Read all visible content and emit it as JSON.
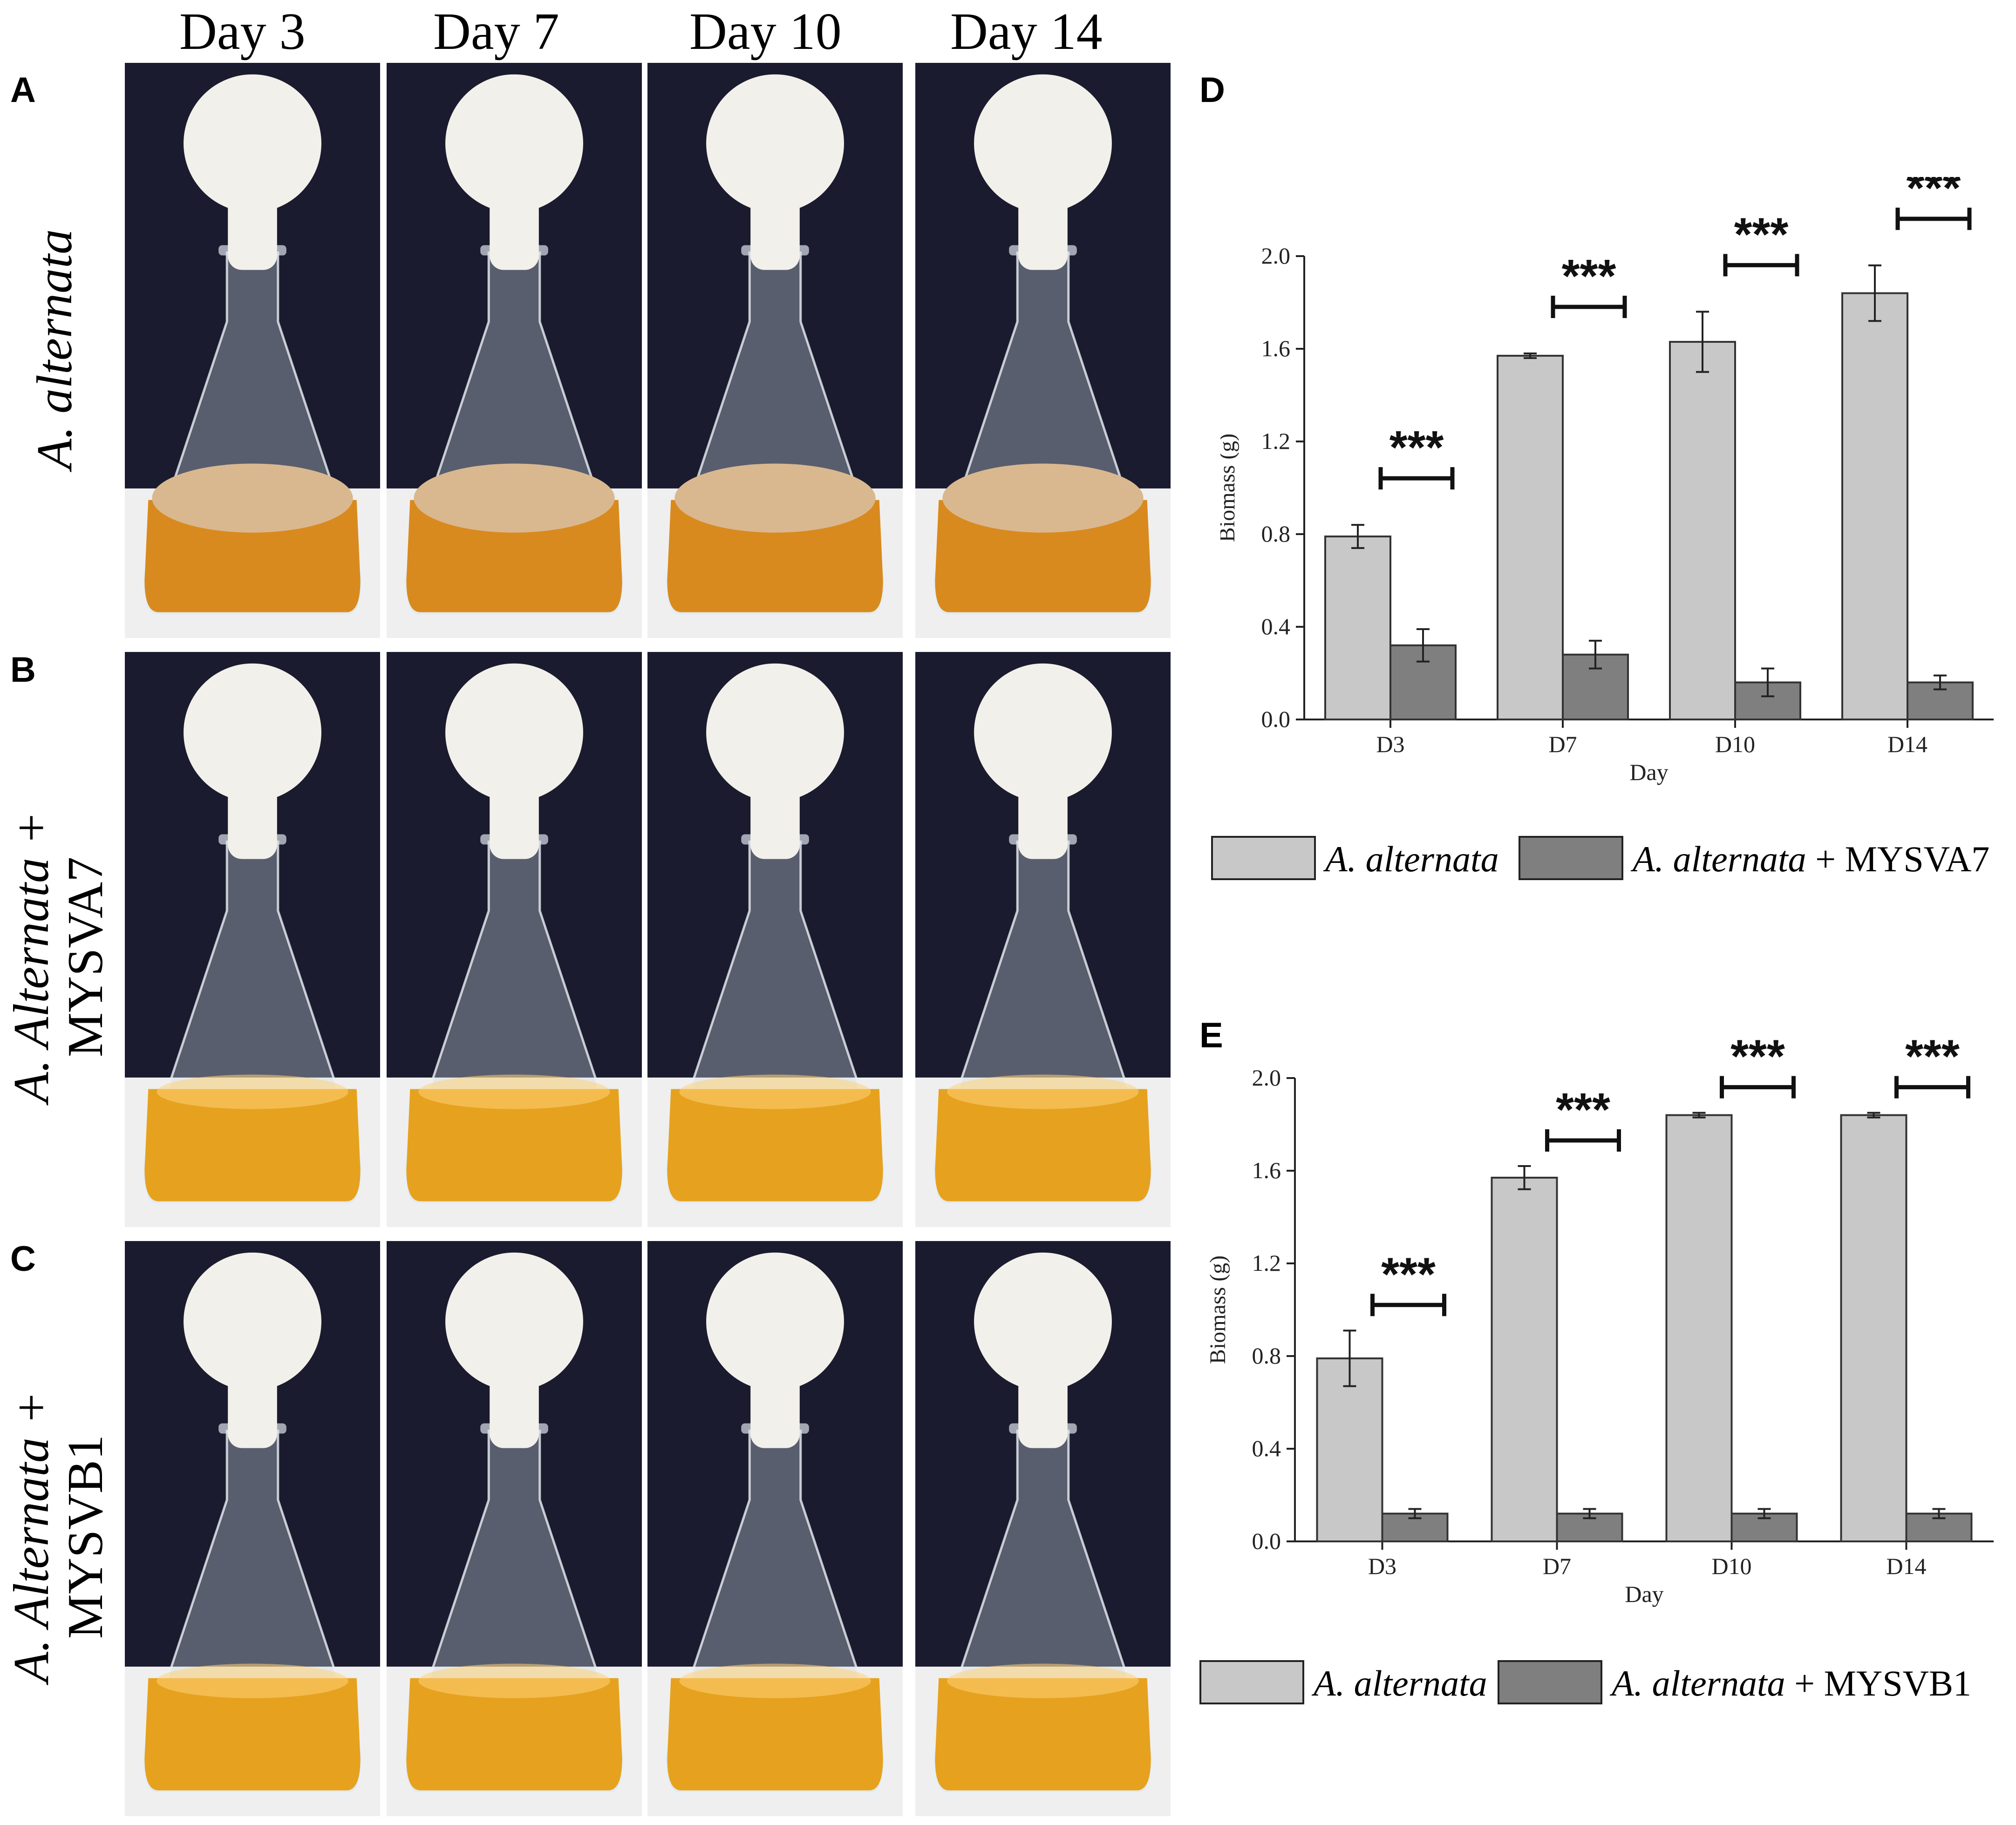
{
  "columns": [
    "Day 3",
    "Day 7",
    "Day 10",
    "Day 14"
  ],
  "panels": {
    "A": {
      "letter": "A",
      "label_line1": "A. alternata",
      "label_line2": ""
    },
    "B": {
      "letter": "B",
      "label_line1": "A. Alternata +",
      "label_line2": "MYSVA7"
    },
    "C": {
      "letter": "C",
      "label_line1": "A. Alternata +",
      "label_line2": "MYSVB1"
    }
  },
  "photo_notes": {
    "A": [
      "D3 flask mycelium mat",
      "D7 flask mycelium mat",
      "D10 flask mycelium mat",
      "D14 flask mycelium mat"
    ],
    "B": [
      "D3 flask clear broth",
      "D7 flask clear broth",
      "D10 flask clear broth",
      "D14 flask clear broth"
    ],
    "C": [
      "D3 flask clear broth",
      "D7 flask clear broth",
      "D10 flask clear broth",
      "D14 flask clear broth"
    ]
  },
  "colors": {
    "bar_light": "#c8c8c8",
    "bar_dark": "#7f7f7f",
    "broth_A": "#d98a1e",
    "broth_B": "#e6a21e",
    "mycelium": "#d9b890",
    "cotton": "#f2f0ea",
    "background_dark": "#1a1b2e"
  },
  "chart_data": [
    {
      "panel": "D",
      "type": "bar",
      "categories": [
        "D3",
        "D7",
        "D10",
        "D14"
      ],
      "series": [
        {
          "name": "A. alternata",
          "values": [
            0.79,
            1.57,
            1.63,
            1.84
          ],
          "errors": [
            0.05,
            0.01,
            0.13,
            0.12
          ]
        },
        {
          "name": "A. alternata + MYSVA7",
          "values": [
            0.32,
            0.28,
            0.16,
            0.16
          ],
          "errors": [
            0.07,
            0.06,
            0.06,
            0.03
          ]
        }
      ],
      "significance": [
        "***",
        "***",
        "***",
        "***"
      ],
      "xlabel": "Day",
      "ylabel": "Biomass (g)",
      "ylim": [
        0,
        2.0
      ],
      "yticks": [
        "0.0",
        "0.4",
        "0.8",
        "1.2",
        "1.6",
        "2.0"
      ],
      "legend": {
        "item1": "A. alternata",
        "item2_italic": "A. alternata",
        "item2_rest": " + MYSVA7"
      }
    },
    {
      "panel": "E",
      "type": "bar",
      "categories": [
        "D3",
        "D7",
        "D10",
        "D14"
      ],
      "series": [
        {
          "name": "A. alternata",
          "values": [
            0.79,
            1.57,
            1.84,
            1.84
          ],
          "errors": [
            0.12,
            0.05,
            0.01,
            0.01
          ]
        },
        {
          "name": "A. alternata + MYSVB1",
          "values": [
            0.12,
            0.12,
            0.12,
            0.12
          ],
          "errors": [
            0.02,
            0.02,
            0.02,
            0.02
          ]
        }
      ],
      "significance": [
        "***",
        "***",
        "***",
        "***"
      ],
      "xlabel": "Day",
      "ylabel": "Biomass (g)",
      "ylim": [
        0,
        2.0
      ],
      "yticks": [
        "0.0",
        "0.4",
        "0.8",
        "1.2",
        "1.6",
        "2.0"
      ],
      "legend": {
        "item1": "A. alternata",
        "item2_italic": "A. alternata",
        "item2_rest": " + MYSVB1"
      }
    }
  ]
}
